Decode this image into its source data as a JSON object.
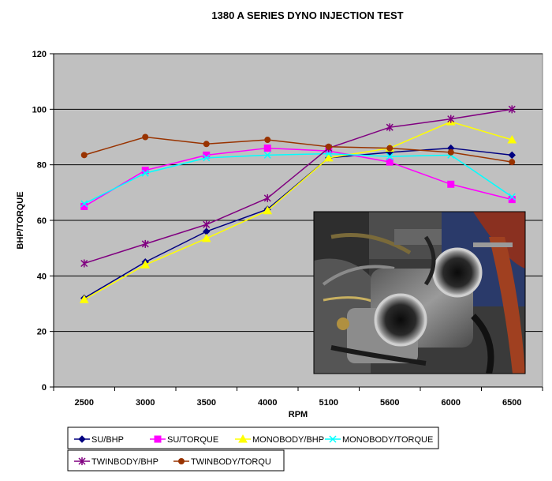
{
  "chart_data": {
    "type": "line",
    "title": "1380 A SERIES DYNO INJECTION TEST",
    "xlabel": "RPM",
    "ylabel": "BHP/TORQUE",
    "categories": [
      "2500",
      "3000",
      "3500",
      "4000",
      "5100",
      "5600",
      "6000",
      "6500"
    ],
    "ylim": [
      0,
      120
    ],
    "yticks": [
      0,
      20,
      40,
      60,
      80,
      100,
      120
    ],
    "grid": true,
    "plot_background": "#c0c0c0",
    "legend_position": "bottom",
    "series": [
      {
        "name": "SU/BHP",
        "color": "#000080",
        "marker": "diamond",
        "values": [
          32,
          45,
          56,
          64,
          82.5,
          84.5,
          86,
          83.5
        ]
      },
      {
        "name": "SU/TORQUE",
        "color": "#ff00ff",
        "marker": "square",
        "values": [
          65,
          78,
          83.5,
          86,
          85,
          81,
          73,
          67.5
        ]
      },
      {
        "name": "MONOBODY/BHP",
        "color": "#ffff00",
        "marker": "triangle",
        "values": [
          31.5,
          44,
          53.5,
          63.5,
          82.5,
          86,
          95.5,
          89
        ]
      },
      {
        "name": "MONOBODY/TORQUE",
        "color": "#00ffff",
        "marker": "x",
        "values": [
          66,
          77,
          82.5,
          83.5,
          84,
          83,
          83.5,
          68.5
        ]
      },
      {
        "name": "TWINBODY/BHP",
        "color": "#800080",
        "marker": "star",
        "values": [
          44.5,
          51.5,
          58.5,
          68,
          86,
          93.5,
          96.5,
          100
        ]
      },
      {
        "name": "TWINBODY/TORQU",
        "color": "#993300",
        "marker": "circle",
        "values": [
          83.5,
          90,
          87.5,
          89,
          86.5,
          86,
          84.5,
          81
        ]
      }
    ]
  }
}
